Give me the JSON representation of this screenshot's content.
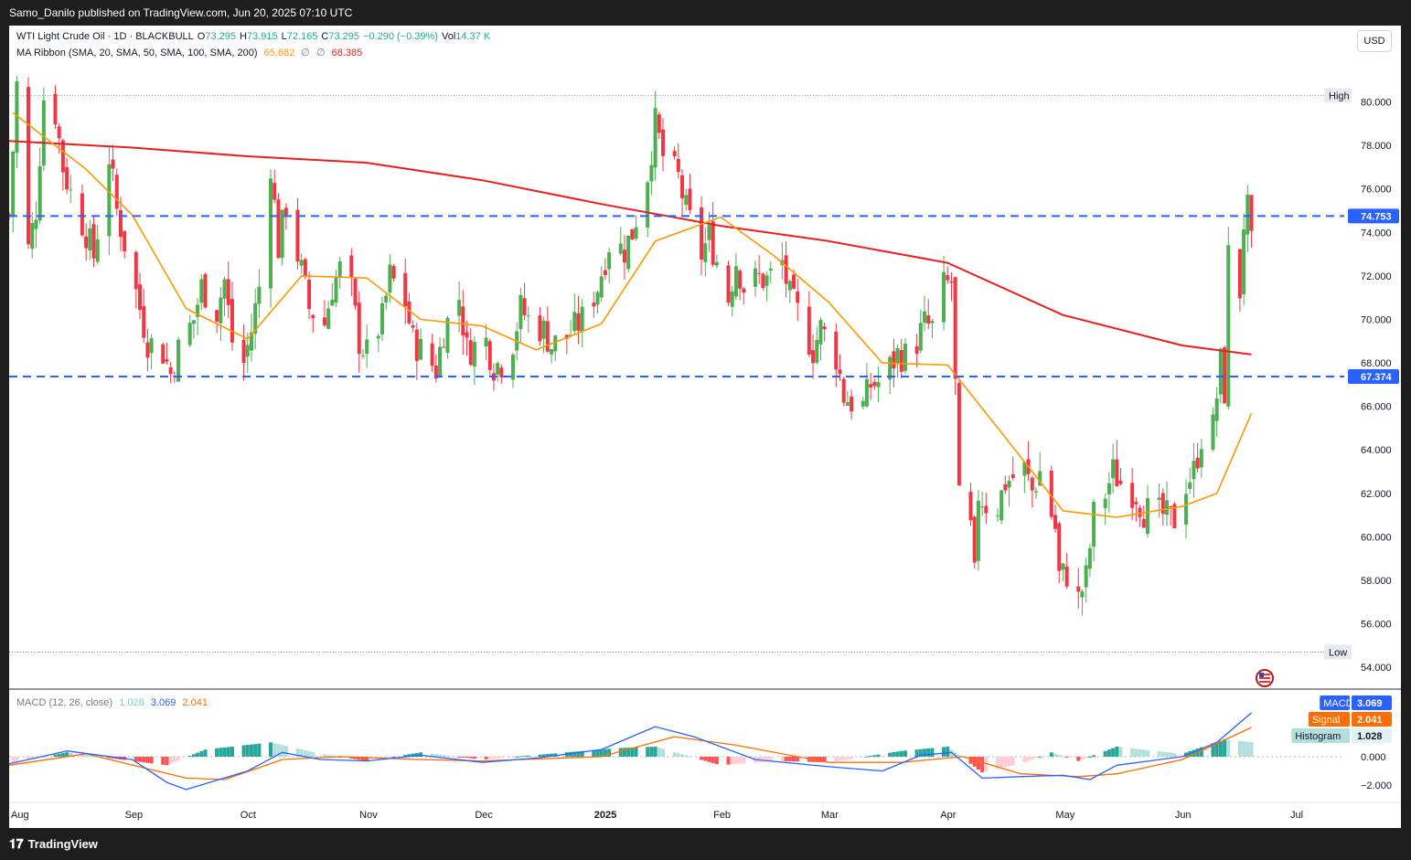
{
  "header": {
    "publish_line": "Samo_Danilo published on TradingView.com, Jun 20, 2025 07:10 UTC"
  },
  "legend": {
    "symbol": "WTI Light Crude Oil · 1D · BLACKBULL",
    "o_label": "O",
    "o_value": "73.295",
    "h_label": "H",
    "h_value": "73.915",
    "l_label": "L",
    "l_value": "72.165",
    "c_label": "C",
    "c_value": "73.295",
    "change": "−0.290 (−0.39%)",
    "vol_label": "Vol",
    "vol_value": "14.37 K",
    "ma_label": "MA Ribbon (SMA, 20, SMA, 50, SMA, 100, SMA, 200)",
    "ma20_value": "65.682",
    "ma_blank1": "∅",
    "ma_blank2": "∅",
    "ma200_value": "68.385",
    "macd_label": "MACD (12, 26, close)",
    "macd_hist_value": "1.028",
    "macd_value": "3.069",
    "macd_signal_value": "2.041"
  },
  "currency_button": "USD",
  "badges": {
    "macd_label": "MACD",
    "macd_value": "3.069",
    "signal_label": "Signal",
    "signal_value": "2.041",
    "hist_label": "Histogram",
    "hist_value": "1.028"
  },
  "footer": {
    "brand": "TradingView"
  },
  "colors": {
    "up": "#4caf50",
    "down": "#f23645",
    "ma20": "#ff9800",
    "ma200": "#e91e1e",
    "level_line": "#2962ff",
    "macd": "#2962ff",
    "signal": "#ff6d00",
    "hist_up": "#26a69a",
    "hist_up_light": "#b2dfdb",
    "hist_down": "#ff5252",
    "hist_down_light": "#ffcdd2"
  },
  "chart_data": [
    {
      "type": "candlestick",
      "title": "WTI Light Crude Oil · 1D · BLACKBULL",
      "ylim": [
        53,
        82.5
      ],
      "y_ticks": [
        54,
        56,
        58,
        60,
        62,
        64,
        66,
        68,
        70,
        72,
        74,
        76,
        78,
        80
      ],
      "y_tick_labels": [
        "54.000",
        "56.000",
        "58.000",
        "60.000",
        "62.000",
        "64.000",
        "66.000",
        "68.000",
        "70.000",
        "72.000",
        "74.000",
        "76.000",
        "78.000",
        "80.000"
      ],
      "x_ticks": [
        {
          "label": "Aug",
          "date": "2024-08-01"
        },
        {
          "label": "Sep",
          "date": "2024-09-01"
        },
        {
          "label": "Oct",
          "date": "2024-10-01"
        },
        {
          "label": "Nov",
          "date": "2024-11-01"
        },
        {
          "label": "Dec",
          "date": "2024-12-01"
        },
        {
          "label": "2025",
          "date": "2025-01-01"
        },
        {
          "label": "Feb",
          "date": "2025-02-01"
        },
        {
          "label": "Mar",
          "date": "2025-03-01"
        },
        {
          "label": "Apr",
          "date": "2025-04-01"
        },
        {
          "label": "May",
          "date": "2025-05-01"
        },
        {
          "label": "Jun",
          "date": "2025-06-01"
        },
        {
          "label": "Jul",
          "date": "2025-07-01"
        }
      ],
      "levels": [
        {
          "value": 74.753,
          "label": "74.753",
          "style": "dashed"
        },
        {
          "value": 67.374,
          "label": "67.374",
          "style": "dashed"
        }
      ],
      "extremes": [
        {
          "label": "High",
          "value": 80.3
        },
        {
          "label": "Low",
          "value": 54.7
        }
      ],
      "close_path": [
        [
          "2024-07-31",
          74.8
        ],
        [
          "2024-08-02",
          80.8
        ],
        [
          "2024-08-05",
          73.2
        ],
        [
          "2024-08-07",
          75.1
        ],
        [
          "2024-08-09",
          80.2
        ],
        [
          "2024-08-12",
          79.5
        ],
        [
          "2024-08-14",
          77.0
        ],
        [
          "2024-08-16",
          75.8
        ],
        [
          "2024-08-20",
          74.0
        ],
        [
          "2024-08-22",
          72.9
        ],
        [
          "2024-08-26",
          77.5
        ],
        [
          "2024-08-28",
          75.0
        ],
        [
          "2024-09-03",
          70.5
        ],
        [
          "2024-09-05",
          69.0
        ],
        [
          "2024-09-09",
          68.5
        ],
        [
          "2024-09-11",
          67.5
        ],
        [
          "2024-09-13",
          68.6
        ],
        [
          "2024-09-17",
          70.0
        ],
        [
          "2024-09-19",
          71.5
        ],
        [
          "2024-09-23",
          70.4
        ],
        [
          "2024-09-25",
          71.8
        ],
        [
          "2024-09-27",
          69.0
        ],
        [
          "2024-09-30",
          68.0
        ],
        [
          "2024-10-02",
          69.5
        ],
        [
          "2024-10-04",
          71.5
        ],
        [
          "2024-10-07",
          77.2
        ],
        [
          "2024-10-09",
          73.3
        ],
        [
          "2024-10-11",
          75.3
        ],
        [
          "2024-10-15",
          72.2
        ],
        [
          "2024-10-17",
          70.5
        ],
        [
          "2024-10-21",
          69.8
        ],
        [
          "2024-10-23",
          71.5
        ],
        [
          "2024-10-25",
          72.3
        ],
        [
          "2024-10-28",
          71.3
        ],
        [
          "2024-10-30",
          69.0
        ],
        [
          "2024-11-01",
          68.4
        ],
        [
          "2024-11-05",
          70.0
        ],
        [
          "2024-11-07",
          72.0
        ],
        [
          "2024-11-11",
          70.8
        ],
        [
          "2024-11-13",
          69.0
        ],
        [
          "2024-11-15",
          68.6
        ],
        [
          "2024-11-19",
          67.7
        ],
        [
          "2024-11-21",
          69.5
        ],
        [
          "2024-11-25",
          71.0
        ],
        [
          "2024-11-27",
          68.6
        ],
        [
          "2024-12-02",
          69.0
        ],
        [
          "2024-12-04",
          67.9
        ],
        [
          "2024-12-06",
          68.0
        ],
        [
          "2024-12-09",
          69.0
        ],
        [
          "2024-12-11",
          70.5
        ],
        [
          "2024-12-13",
          70.0
        ],
        [
          "2024-12-17",
          69.5
        ],
        [
          "2024-12-19",
          68.8
        ],
        [
          "2024-12-23",
          69.2
        ],
        [
          "2024-12-27",
          70.0
        ],
        [
          "2024-12-31",
          71.5
        ],
        [
          "2025-01-03",
          73.5
        ],
        [
          "2025-01-07",
          73.2
        ],
        [
          "2025-01-09",
          74.0
        ],
        [
          "2025-01-13",
          76.7
        ],
        [
          "2025-01-15",
          79.0
        ],
        [
          "2025-01-17",
          77.5
        ],
        [
          "2025-01-21",
          76.5
        ],
        [
          "2025-01-23",
          75.0
        ],
        [
          "2025-01-27",
          73.0
        ],
        [
          "2025-01-29",
          73.8
        ],
        [
          "2025-02-03",
          71.0
        ],
        [
          "2025-02-05",
          72.7
        ],
        [
          "2025-02-07",
          71.5
        ],
        [
          "2025-02-11",
          71.9
        ],
        [
          "2025-02-13",
          71.8
        ],
        [
          "2025-02-17",
          72.6
        ],
        [
          "2025-02-19",
          71.0
        ],
        [
          "2025-02-21",
          70.3
        ],
        [
          "2025-02-25",
          68.6
        ],
        [
          "2025-02-27",
          69.6
        ],
        [
          "2025-03-03",
          68.3
        ],
        [
          "2025-03-05",
          66.5
        ],
        [
          "2025-03-07",
          66.2
        ],
        [
          "2025-03-10",
          66.0
        ],
        [
          "2025-03-12",
          67.0
        ],
        [
          "2025-03-14",
          67.1
        ],
        [
          "2025-03-17",
          67.8
        ],
        [
          "2025-03-19",
          68.4
        ],
        [
          "2025-03-21",
          68.3
        ],
        [
          "2025-03-24",
          69.0
        ],
        [
          "2025-03-26",
          69.8
        ],
        [
          "2025-03-28",
          69.6
        ],
        [
          "2025-03-31",
          71.5
        ],
        [
          "2025-04-02",
          71.7
        ],
        [
          "2025-04-03",
          66.9
        ],
        [
          "2025-04-04",
          61.6
        ],
        [
          "2025-04-07",
          60.3
        ],
        [
          "2025-04-08",
          58.1
        ],
        [
          "2025-04-09",
          62.0
        ],
        [
          "2025-04-11",
          61.5
        ],
        [
          "2025-04-14",
          61.4
        ],
        [
          "2025-04-16",
          62.5
        ],
        [
          "2025-04-21",
          63.1
        ],
        [
          "2025-04-23",
          62.1
        ],
        [
          "2025-04-25",
          63.0
        ],
        [
          "2025-04-29",
          60.4
        ],
        [
          "2025-04-30",
          58.2
        ],
        [
          "2025-05-02",
          58.3
        ],
        [
          "2025-05-05",
          57.1
        ],
        [
          "2025-05-07",
          58.1
        ],
        [
          "2025-05-09",
          61.0
        ],
        [
          "2025-05-12",
          62.0
        ],
        [
          "2025-05-14",
          63.0
        ],
        [
          "2025-05-16",
          62.5
        ],
        [
          "2025-05-20",
          62.0
        ],
        [
          "2025-05-22",
          61.2
        ],
        [
          "2025-05-27",
          61.0
        ],
        [
          "2025-05-29",
          60.8
        ],
        [
          "2025-05-30",
          60.8
        ],
        [
          "2025-06-02",
          62.5
        ],
        [
          "2025-06-04",
          63.0
        ],
        [
          "2025-06-06",
          64.6
        ],
        [
          "2025-06-09",
          65.0
        ],
        [
          "2025-06-11",
          68.0
        ],
        [
          "2025-06-12",
          66.7
        ],
        [
          "2025-06-13",
          72.9
        ],
        [
          "2025-06-16",
          71.3
        ],
        [
          "2025-06-17",
          74.5
        ],
        [
          "2025-06-18",
          75.0
        ],
        [
          "2025-06-19",
          73.3
        ]
      ],
      "sma200_path": [
        [
          "2024-07-31",
          78.2
        ],
        [
          "2024-09-01",
          77.9
        ],
        [
          "2024-10-01",
          77.5
        ],
        [
          "2024-11-01",
          77.2
        ],
        [
          "2024-12-01",
          76.4
        ],
        [
          "2025-01-01",
          75.3
        ],
        [
          "2025-02-01",
          74.3
        ],
        [
          "2025-03-01",
          73.6
        ],
        [
          "2025-04-01",
          72.6
        ],
        [
          "2025-05-01",
          70.2
        ],
        [
          "2025-06-01",
          68.8
        ],
        [
          "2025-06-19",
          68.385
        ]
      ],
      "sma20_path": [
        [
          "2024-08-01",
          79.5
        ],
        [
          "2024-08-20",
          76.9
        ],
        [
          "2024-09-01",
          74.8
        ],
        [
          "2024-09-15",
          70.5
        ],
        [
          "2024-10-01",
          69.1
        ],
        [
          "2024-10-15",
          72.0
        ],
        [
          "2024-11-01",
          71.9
        ],
        [
          "2024-11-15",
          70.0
        ],
        [
          "2024-12-01",
          69.7
        ],
        [
          "2024-12-15",
          68.6
        ],
        [
          "2025-01-01",
          69.8
        ],
        [
          "2025-01-15",
          73.6
        ],
        [
          "2025-02-01",
          74.7
        ],
        [
          "2025-02-15",
          72.9
        ],
        [
          "2025-03-01",
          70.8
        ],
        [
          "2025-03-15",
          68.0
        ],
        [
          "2025-04-01",
          67.9
        ],
        [
          "2025-04-15",
          64.8
        ],
        [
          "2025-05-01",
          61.2
        ],
        [
          "2025-05-15",
          60.9
        ],
        [
          "2025-06-01",
          61.4
        ],
        [
          "2025-06-10",
          62.0
        ],
        [
          "2025-06-19",
          65.682
        ]
      ]
    },
    {
      "type": "line",
      "title": "MACD (12, 26, close)",
      "ylim": [
        -3.2,
        4.6
      ],
      "y_ticks": [
        -2,
        0
      ],
      "y_tick_labels": [
        "−2.000",
        "0.000"
      ],
      "series": [
        {
          "name": "MACD",
          "values": [
            [
              "2024-07-31",
              -0.5
            ],
            [
              "2024-08-15",
              0.4
            ],
            [
              "2024-09-01",
              -0.2
            ],
            [
              "2024-09-10",
              -1.8
            ],
            [
              "2024-09-15",
              -2.3
            ],
            [
              "2024-10-01",
              -1.0
            ],
            [
              "2024-10-10",
              0.3
            ],
            [
              "2024-10-20",
              -0.2
            ],
            [
              "2024-11-01",
              -0.3
            ],
            [
              "2024-11-15",
              0.1
            ],
            [
              "2024-12-01",
              -0.4
            ],
            [
              "2024-12-15",
              -0.1
            ],
            [
              "2025-01-01",
              0.5
            ],
            [
              "2025-01-15",
              2.1
            ],
            [
              "2025-01-25",
              1.4
            ],
            [
              "2025-02-10",
              -0.2
            ],
            [
              "2025-03-01",
              -0.7
            ],
            [
              "2025-03-15",
              -1.0
            ],
            [
              "2025-03-25",
              0.1
            ],
            [
              "2025-04-02",
              0.3
            ],
            [
              "2025-04-10",
              -1.5
            ],
            [
              "2025-04-20",
              -1.4
            ],
            [
              "2025-05-01",
              -1.3
            ],
            [
              "2025-05-08",
              -1.6
            ],
            [
              "2025-05-15",
              -0.6
            ],
            [
              "2025-06-01",
              0.0
            ],
            [
              "2025-06-10",
              1.0
            ],
            [
              "2025-06-19",
              3.069
            ]
          ]
        },
        {
          "name": "Signal",
          "values": [
            [
              "2024-07-31",
              -0.6
            ],
            [
              "2024-08-20",
              0.2
            ],
            [
              "2024-09-15",
              -1.5
            ],
            [
              "2024-09-25",
              -1.6
            ],
            [
              "2024-10-10",
              -0.2
            ],
            [
              "2024-10-25",
              0.0
            ],
            [
              "2024-11-15",
              -0.2
            ],
            [
              "2024-12-01",
              -0.3
            ],
            [
              "2025-01-01",
              0.0
            ],
            [
              "2025-01-20",
              1.4
            ],
            [
              "2025-02-05",
              0.8
            ],
            [
              "2025-03-01",
              -0.4
            ],
            [
              "2025-03-20",
              -0.4
            ],
            [
              "2025-04-05",
              0.0
            ],
            [
              "2025-04-20",
              -1.2
            ],
            [
              "2025-05-05",
              -1.4
            ],
            [
              "2025-05-15",
              -1.2
            ],
            [
              "2025-06-01",
              -0.2
            ],
            [
              "2025-06-19",
              2.041
            ]
          ]
        }
      ],
      "histogram_path": [
        [
          "2024-08-01",
          -0.4
        ],
        [
          "2024-08-15",
          0.3
        ],
        [
          "2024-09-01",
          -0.3
        ],
        [
          "2024-09-10",
          -0.6
        ],
        [
          "2024-09-20",
          0.5
        ],
        [
          "2024-10-07",
          1.0
        ],
        [
          "2024-10-20",
          0.2
        ],
        [
          "2024-11-01",
          -0.3
        ],
        [
          "2024-11-15",
          0.3
        ],
        [
          "2024-12-01",
          -0.2
        ],
        [
          "2025-01-05",
          0.6
        ],
        [
          "2025-01-15",
          0.7
        ],
        [
          "2025-02-01",
          -0.6
        ],
        [
          "2025-02-15",
          -0.3
        ],
        [
          "2025-03-01",
          -0.4
        ],
        [
          "2025-03-20",
          0.4
        ],
        [
          "2025-04-01",
          0.7
        ],
        [
          "2025-04-10",
          -1.1
        ],
        [
          "2025-04-20",
          -0.5
        ],
        [
          "2025-04-28",
          0.3
        ],
        [
          "2025-05-05",
          -0.3
        ],
        [
          "2025-05-15",
          0.7
        ],
        [
          "2025-06-01",
          0.2
        ],
        [
          "2025-06-12",
          1.2
        ],
        [
          "2025-06-19",
          1.028
        ]
      ]
    }
  ]
}
